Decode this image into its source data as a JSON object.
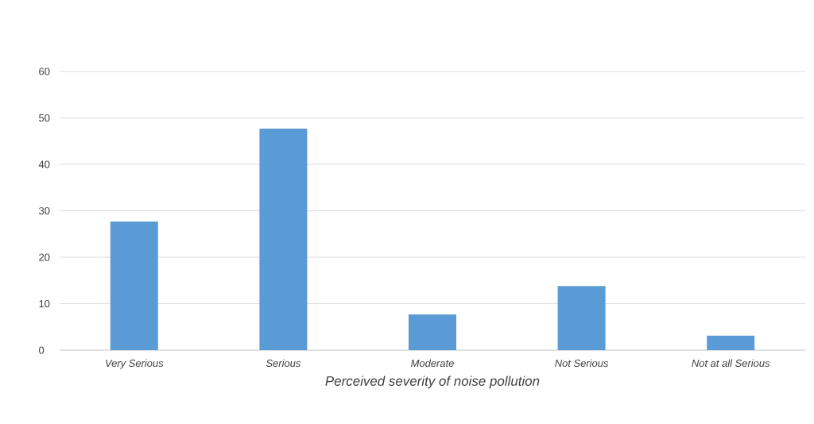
{
  "chart_data": {
    "type": "bar",
    "xlabel": "Perceived severity of noise pollution",
    "categories": [
      "Very Serious",
      "Serious",
      "Moderate",
      "Not Serious",
      "Not at all Serious"
    ],
    "values": [
      27.7,
      47.7,
      7.7,
      13.8,
      3.1
    ],
    "color": "#5b9bd5",
    "ylim": [
      0,
      60
    ],
    "yticks": [
      0,
      10,
      20,
      30,
      40,
      50,
      60
    ],
    "grid": "y"
  }
}
